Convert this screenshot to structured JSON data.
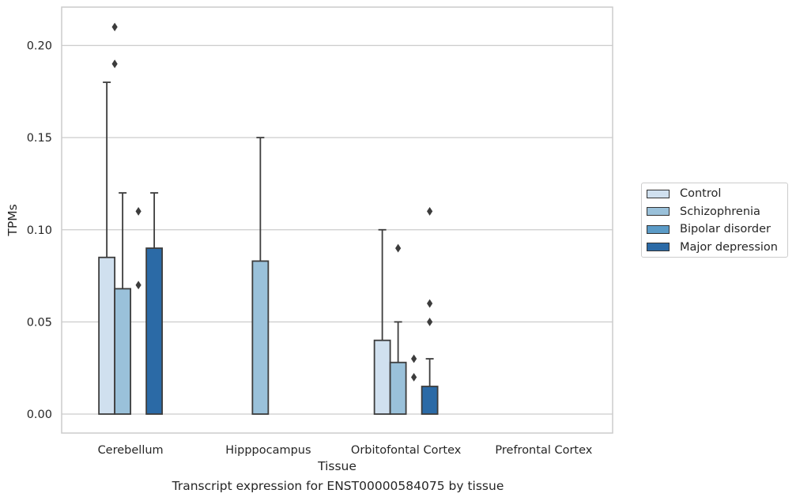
{
  "caption": "Transcript expression for ENST00000584075 by tissue",
  "chart_data": {
    "type": "bar",
    "xlabel": "Tissue",
    "ylabel": "TPMs",
    "ylim": [
      -0.01,
      0.22
    ],
    "yticks": [
      "0.00",
      "0.05",
      "0.10",
      "0.15",
      "0.20"
    ],
    "grid": true,
    "legend_position": "right",
    "categories": [
      "Cerebellum",
      "Hipppocampus",
      "Orbitofontal Cortex",
      "Prefrontal Cortex"
    ],
    "series": [
      {
        "name": "Control",
        "color": "#d0e0ef",
        "values": [
          0.085,
          0.0,
          0.04,
          0.0
        ],
        "whisker_high": [
          0.18,
          0.0,
          0.1,
          0.0
        ],
        "outliers": [
          [],
          [],
          [],
          []
        ]
      },
      {
        "name": "Schizophrenia",
        "color": "#9ac1da",
        "values": [
          0.068,
          0.083,
          0.028,
          0.0
        ],
        "whisker_high": [
          0.12,
          0.15,
          0.05,
          0.0
        ],
        "outliers": [
          [],
          [],
          [
            0.09
          ],
          []
        ]
      },
      {
        "name": "Bipolar disorder",
        "color": "#5b9bc7",
        "values": [
          0.0,
          0.0,
          0.0,
          0.0
        ],
        "whisker_high": [
          0.0,
          0.0,
          0.0,
          0.0
        ],
        "outliers": [
          [
            0.07,
            0.11
          ],
          [],
          [
            0.02,
            0.03
          ],
          []
        ]
      },
      {
        "name": "Major depression",
        "color": "#2b6aa6",
        "values": [
          0.09,
          0.0,
          0.015,
          0.0
        ],
        "whisker_high": [
          0.12,
          0.0,
          0.03,
          0.0
        ],
        "outliers": [
          [],
          [],
          [
            0.05,
            0.06,
            0.11
          ],
          []
        ]
      }
    ],
    "extra_outliers": [
      {
        "category": "Cerebellum",
        "between_series": [
          "Control",
          "Schizophrenia"
        ],
        "values": [
          0.19,
          0.21
        ]
      }
    ]
  }
}
